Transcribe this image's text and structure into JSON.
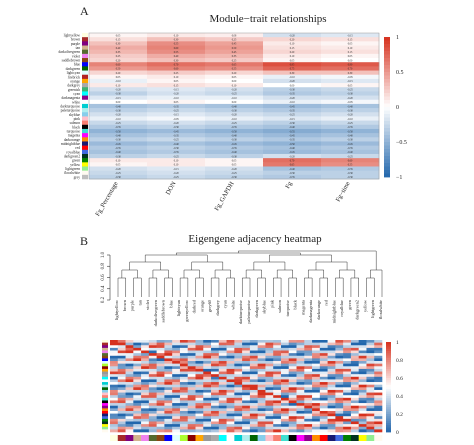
{
  "panels": {
    "a_label": "A",
    "b_label": "B"
  },
  "chart_data": [
    {
      "type": "heatmap",
      "title": "Module−trait relationships",
      "columns": [
        "Fg_Percentage",
        "DON",
        "Fg_GAPDH",
        "Fg",
        "Fg−time"
      ],
      "rows": [
        "lightyellow",
        "brown",
        "purple",
        "tan",
        "darkolivegreen",
        "violet",
        "saddlebrown",
        "blue",
        "darkgreen",
        "lightcyan",
        "firebrick",
        "orange",
        "darkgrey",
        "greenish",
        "cyan",
        "darkmagenta",
        "white",
        "darkturquoise",
        "paleturquoise",
        "skyblue",
        "pink",
        "salmon",
        "black",
        "turquoise",
        "magenta",
        "darkorange",
        "midnightblue",
        "red",
        "royalblue",
        "darkgreen2",
        "green",
        "yellow",
        "lightgreen",
        "floralwhite",
        "grey"
      ],
      "row_colors": [
        "#ffffe0",
        "#a52a2a",
        "#800080",
        "#d2b48c",
        "#556b2f",
        "#ee82ee",
        "#8b4513",
        "#0000ff",
        "#006400",
        "#e0ffff",
        "#b22222",
        "#ffa500",
        "#a9a9a9",
        "#3cb371",
        "#00ffff",
        "#8b008b",
        "#ffffff",
        "#00ced1",
        "#afeeee",
        "#87ceeb",
        "#ffc0cb",
        "#fa8072",
        "#000000",
        "#40e0d0",
        "#ff00ff",
        "#ff8c00",
        "#191970",
        "#ff0000",
        "#4169e1",
        "#013220",
        "#008000",
        "#ffff00",
        "#90ee90",
        "#fffaf0",
        "#bebebe"
      ],
      "values": [
        [
          0.05,
          0.1,
          0.08,
          -0.2,
          -0.15
        ],
        [
          0.15,
          0.3,
          0.25,
          0.2,
          0.15
        ],
        [
          0.3,
          0.55,
          0.45,
          0.1,
          0.05
        ],
        [
          0.4,
          0.6,
          0.5,
          0.15,
          0.1
        ],
        [
          0.35,
          0.55,
          0.45,
          0.2,
          0.15
        ],
        [
          0.25,
          0.4,
          0.35,
          0.1,
          0.05
        ],
        [
          0.2,
          0.3,
          0.25,
          0.05,
          0.0
        ],
        [
          0.6,
          0.7,
          0.65,
          0.85,
          0.8
        ],
        [
          0.5,
          0.6,
          0.55,
          0.75,
          0.7
        ],
        [
          0.2,
          0.25,
          0.2,
          0.3,
          0.3
        ],
        [
          0.05,
          0.1,
          0.05,
          -0.1,
          -0.05
        ],
        [
          -0.1,
          0.05,
          0.0,
          -0.2,
          -0.15
        ],
        [
          0.1,
          0.15,
          0.1,
          0.0,
          0.05
        ],
        [
          -0.2,
          -0.15,
          -0.2,
          -0.3,
          -0.25
        ],
        [
          -0.3,
          -0.2,
          -0.25,
          -0.35,
          -0.3
        ],
        [
          -0.15,
          -0.1,
          -0.1,
          -0.2,
          -0.2
        ],
        [
          0.0,
          0.05,
          0.0,
          -0.1,
          -0.05
        ],
        [
          -0.4,
          -0.35,
          -0.4,
          -0.45,
          -0.4
        ],
        [
          -0.3,
          -0.25,
          -0.3,
          -0.35,
          -0.3
        ],
        [
          -0.2,
          -0.15,
          -0.2,
          -0.25,
          -0.2
        ],
        [
          -0.1,
          -0.05,
          -0.1,
          -0.15,
          -0.1
        ],
        [
          -0.25,
          -0.2,
          -0.25,
          -0.3,
          -0.25
        ],
        [
          -0.35,
          -0.3,
          -0.35,
          -0.4,
          -0.35
        ],
        [
          -0.5,
          -0.45,
          -0.5,
          -0.55,
          -0.5
        ],
        [
          -0.4,
          -0.35,
          -0.4,
          -0.45,
          -0.4
        ],
        [
          -0.3,
          -0.25,
          -0.3,
          -0.35,
          -0.3
        ],
        [
          -0.45,
          -0.4,
          -0.45,
          -0.5,
          -0.45
        ],
        [
          -0.35,
          -0.3,
          -0.35,
          -0.4,
          -0.35
        ],
        [
          -0.4,
          -0.35,
          -0.4,
          -0.45,
          -0.4
        ],
        [
          -0.3,
          -0.25,
          -0.3,
          -0.2,
          -0.25
        ],
        [
          0.1,
          0.1,
          0.05,
          0.7,
          0.6
        ],
        [
          0.05,
          0.1,
          0.05,
          0.65,
          0.55
        ],
        [
          -0.2,
          -0.15,
          -0.2,
          -0.4,
          -0.35
        ],
        [
          -0.25,
          -0.2,
          -0.25,
          -0.3,
          -0.3
        ],
        [
          -0.3,
          -0.25,
          -0.3,
          -0.35,
          -0.3
        ]
      ],
      "colorbar": {
        "min": -1,
        "max": 1,
        "ticks": [
          "1",
          "0.5",
          "0",
          "−0.5",
          "−1"
        ],
        "colors": [
          "#2166ac",
          "#ffffff",
          "#d6301d"
        ]
      }
    },
    {
      "type": "heatmap",
      "title": "Eigengene adjacency heatmap",
      "dendrogram_axis_ticks": [
        "0.2",
        "0.4",
        "0.6",
        "0.8",
        "1.0"
      ],
      "dendrogram_labels": [
        "lightyellow",
        "brown",
        "purple",
        "tan",
        "violet",
        "darkolivegreen",
        "saddlebrown",
        "blue",
        "lightcyan",
        "greenyellow",
        "darkred",
        "orange",
        "grey60",
        "darkgrey",
        "cyan",
        "white",
        "darkturquoise",
        "paleturquoise",
        "darkgreen",
        "skyblue",
        "pink",
        "salmon",
        "turquoise",
        "black",
        "magenta",
        "darkmagenta",
        "darkorange",
        "red",
        "midnightblue",
        "royalblue",
        "green",
        "darkgreen2",
        "yellow",
        "lightgreen",
        "floralwhite"
      ],
      "colorbar": {
        "min": 0,
        "max": 1,
        "ticks": [
          "1",
          "0.8",
          "0.6",
          "0.4",
          "0.2",
          "0"
        ],
        "colors": [
          "#2166ac",
          "#ffffff",
          "#d6301d"
        ]
      }
    }
  ]
}
